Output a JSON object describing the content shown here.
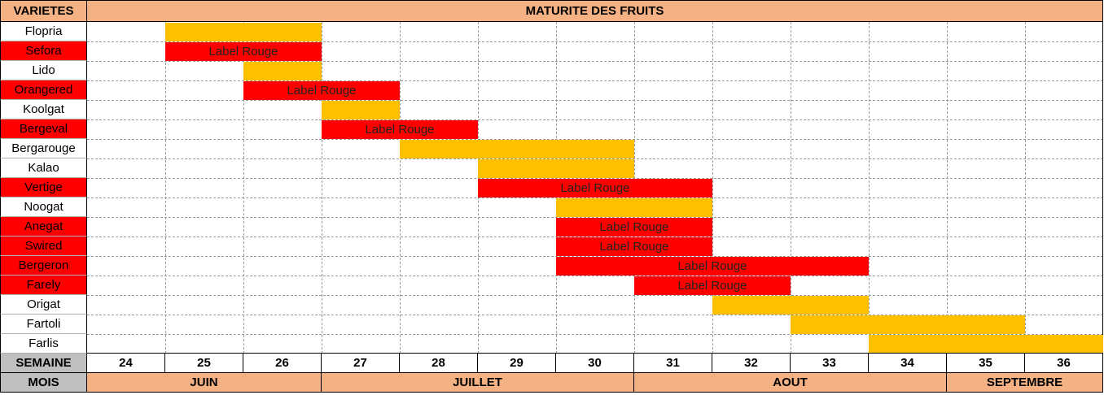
{
  "chart_data": {
    "type": "table",
    "title": "MATURITE DES FRUITS",
    "column_header": "VARIETES",
    "row_labels": {
      "weeks": "SEMAINE",
      "months": "MOIS"
    },
    "weeks": [
      "24",
      "25",
      "26",
      "27",
      "28",
      "29",
      "30",
      "31",
      "32",
      "33",
      "34",
      "35",
      "36"
    ],
    "months": [
      {
        "label": "JUIN",
        "start_week": 24,
        "end_week": 26
      },
      {
        "label": "JUILLET",
        "start_week": 27,
        "end_week": 30
      },
      {
        "label": "AOUT",
        "start_week": 31,
        "end_week": 34
      },
      {
        "label": "SEPTEMBRE",
        "start_week": 35,
        "end_week": 36
      }
    ],
    "varieties": [
      {
        "name": "Flopria",
        "label_rouge": false,
        "start_week": 25,
        "end_week": 26,
        "bar_label": ""
      },
      {
        "name": "Sefora",
        "label_rouge": true,
        "start_week": 25,
        "end_week": 26,
        "bar_label": "Label Rouge"
      },
      {
        "name": "Lido",
        "label_rouge": false,
        "start_week": 26,
        "end_week": 26,
        "bar_label": ""
      },
      {
        "name": "Orangered",
        "label_rouge": true,
        "start_week": 26,
        "end_week": 27,
        "bar_label": "Label Rouge"
      },
      {
        "name": "Koolgat",
        "label_rouge": false,
        "start_week": 27,
        "end_week": 27,
        "bar_label": ""
      },
      {
        "name": "Bergeval",
        "label_rouge": true,
        "start_week": 27,
        "end_week": 28,
        "bar_label": "Label Rouge"
      },
      {
        "name": "Bergarouge",
        "label_rouge": false,
        "start_week": 28,
        "end_week": 30,
        "bar_label": ""
      },
      {
        "name": "Kalao",
        "label_rouge": false,
        "start_week": 29,
        "end_week": 30,
        "bar_label": ""
      },
      {
        "name": "Vertige",
        "label_rouge": true,
        "start_week": 29,
        "end_week": 31,
        "bar_label": "Label Rouge"
      },
      {
        "name": "Noogat",
        "label_rouge": false,
        "start_week": 30,
        "end_week": 31,
        "bar_label": ""
      },
      {
        "name": "Anegat",
        "label_rouge": true,
        "start_week": 30,
        "end_week": 31,
        "bar_label": "Label Rouge"
      },
      {
        "name": "Swired",
        "label_rouge": true,
        "start_week": 30,
        "end_week": 31,
        "bar_label": "Label Rouge"
      },
      {
        "name": "Bergeron",
        "label_rouge": true,
        "start_week": 30,
        "end_week": 33,
        "bar_label": "Label Rouge"
      },
      {
        "name": "Farely",
        "label_rouge": true,
        "start_week": 31,
        "end_week": 32,
        "bar_label": "Label Rouge"
      },
      {
        "name": "Origat",
        "label_rouge": false,
        "start_week": 32,
        "end_week": 33,
        "bar_label": ""
      },
      {
        "name": "Fartoli",
        "label_rouge": false,
        "start_week": 33,
        "end_week": 35,
        "bar_label": ""
      },
      {
        "name": "Farlis",
        "label_rouge": false,
        "start_week": 34,
        "end_week": 36,
        "bar_label": ""
      }
    ],
    "colors": {
      "header_bg": "#F4B183",
      "row_label_bg": "#BFBFBF",
      "label_rouge": "#FF0000",
      "standard": "#FFC000",
      "grid": "#9A9A9A",
      "border": "#000000"
    }
  }
}
